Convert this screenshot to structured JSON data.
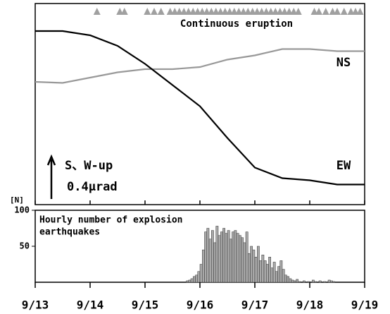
{
  "chart_data": [
    {
      "type": "line",
      "annotations": [
        "Continuous eruption",
        "NS",
        "EW",
        "S、W-up",
        "0.4μrad"
      ],
      "x": [
        0,
        12,
        24,
        36,
        48,
        60,
        72,
        84,
        96,
        108,
        120,
        132,
        144
      ],
      "series": [
        {
          "name": "NS",
          "color": "#999999",
          "values": [
            1.16,
            1.15,
            1.2,
            1.25,
            1.28,
            1.28,
            1.3,
            1.37,
            1.41,
            1.47,
            1.47,
            1.45,
            1.45
          ]
        },
        {
          "name": "EW",
          "color": "#000000",
          "values": [
            1.64,
            1.64,
            1.6,
            1.5,
            1.33,
            1.13,
            0.93,
            0.63,
            0.35,
            0.25,
            0.23,
            0.19,
            0.19
          ]
        }
      ],
      "eruptions": {
        "color": "#a0a0a0",
        "x": [
          27,
          37,
          39,
          49,
          52,
          55,
          59,
          61,
          63,
          65,
          67,
          69,
          71,
          73,
          75,
          77,
          79,
          81,
          83,
          85,
          87,
          89,
          91,
          93,
          95,
          97,
          99,
          101,
          103,
          105,
          107,
          109,
          111,
          113,
          115,
          122,
          124,
          127,
          130,
          132,
          135,
          138,
          140,
          142
        ]
      },
      "xlim": [
        0,
        144
      ],
      "ylim": [
        0,
        1.9
      ]
    },
    {
      "type": "histogram",
      "title": [
        "Hourly number of explosion",
        "earthquakes"
      ],
      "ylabel": "[N]",
      "color": "#a8a8a8",
      "bins": [
        66,
        67,
        68,
        69,
        70,
        71,
        72,
        73,
        74,
        75,
        76,
        77,
        78,
        79,
        80,
        81,
        82,
        83,
        84,
        85,
        86,
        87,
        88,
        89,
        90,
        91,
        92,
        93,
        94,
        95,
        96,
        97,
        98,
        99,
        100,
        101,
        102,
        103,
        104,
        105,
        106,
        107,
        108,
        109,
        110,
        111,
        112,
        113,
        114,
        115,
        116,
        117,
        118,
        119,
        120,
        121,
        122,
        123,
        124,
        125,
        126,
        127,
        128,
        129,
        130,
        131,
        132
      ],
      "values": [
        2,
        3,
        5,
        8,
        10,
        15,
        25,
        45,
        70,
        75,
        60,
        72,
        55,
        78,
        65,
        70,
        75,
        68,
        72,
        60,
        70,
        72,
        68,
        65,
        62,
        55,
        70,
        40,
        50,
        45,
        35,
        50,
        30,
        38,
        30,
        25,
        35,
        20,
        28,
        15,
        22,
        30,
        18,
        10,
        8,
        5,
        3,
        2,
        4,
        1,
        0,
        2,
        0,
        1,
        0,
        3,
        1,
        0,
        2,
        0,
        1,
        0,
        3,
        2,
        1,
        0
      ],
      "xlim": [
        0,
        144
      ],
      "xticks": [
        {
          "value": 0,
          "label": "9/13"
        },
        {
          "value": 24,
          "label": "9/14"
        },
        {
          "value": 48,
          "label": "9/15"
        },
        {
          "value": 72,
          "label": "9/16"
        },
        {
          "value": 96,
          "label": "9/17"
        },
        {
          "value": 120,
          "label": "9/18"
        },
        {
          "value": 144,
          "label": "9/19"
        }
      ],
      "ylim": [
        0,
        100
      ],
      "yticks": [
        50,
        100
      ]
    }
  ]
}
